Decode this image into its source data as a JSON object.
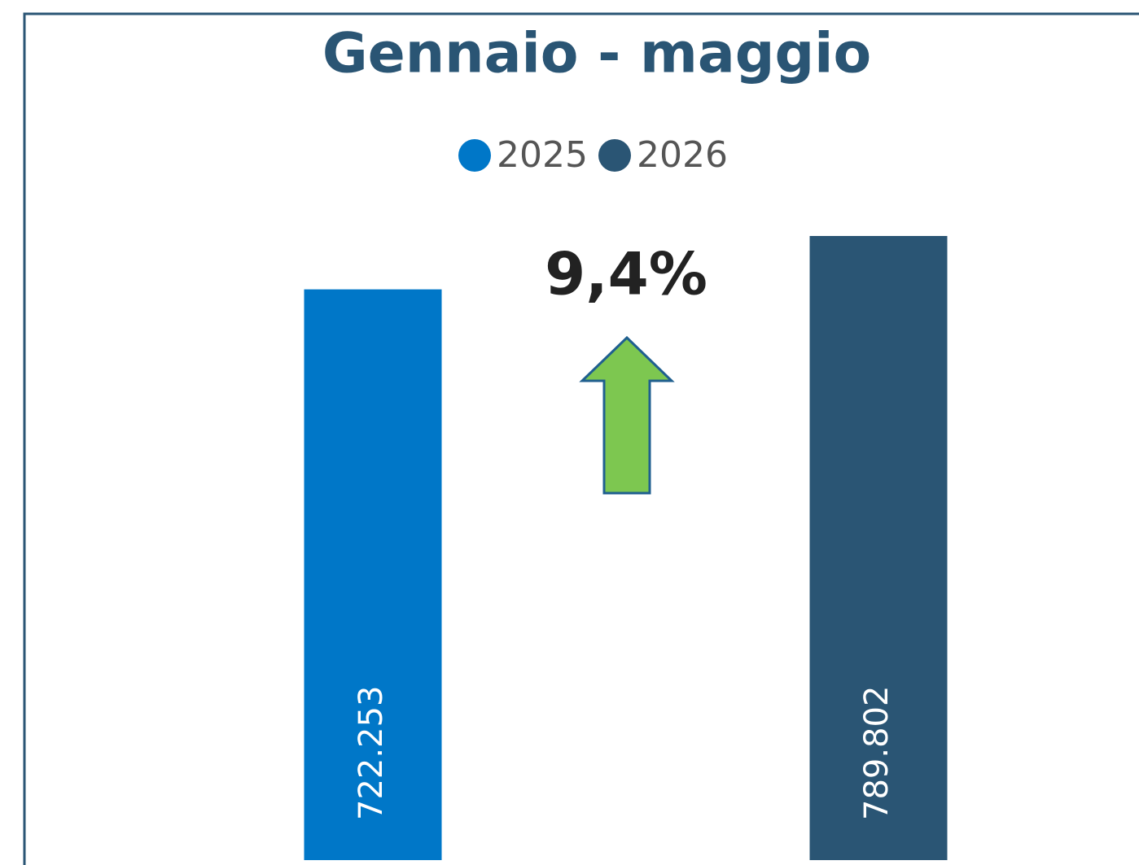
{
  "chart_data": {
    "type": "bar",
    "title": "Gennaio - maggio",
    "categories": [
      null
    ],
    "series": [
      {
        "name": "2025",
        "color": "#0077c8",
        "values": [
          722253
        ],
        "value_labels": [
          "722.253"
        ]
      },
      {
        "name": "2026",
        "color": "#2a5574",
        "values": [
          789802
        ],
        "value_labels": [
          "789.802"
        ]
      }
    ],
    "annotations": [
      {
        "text": "9,4%"
      }
    ],
    "legend": "top"
  }
}
